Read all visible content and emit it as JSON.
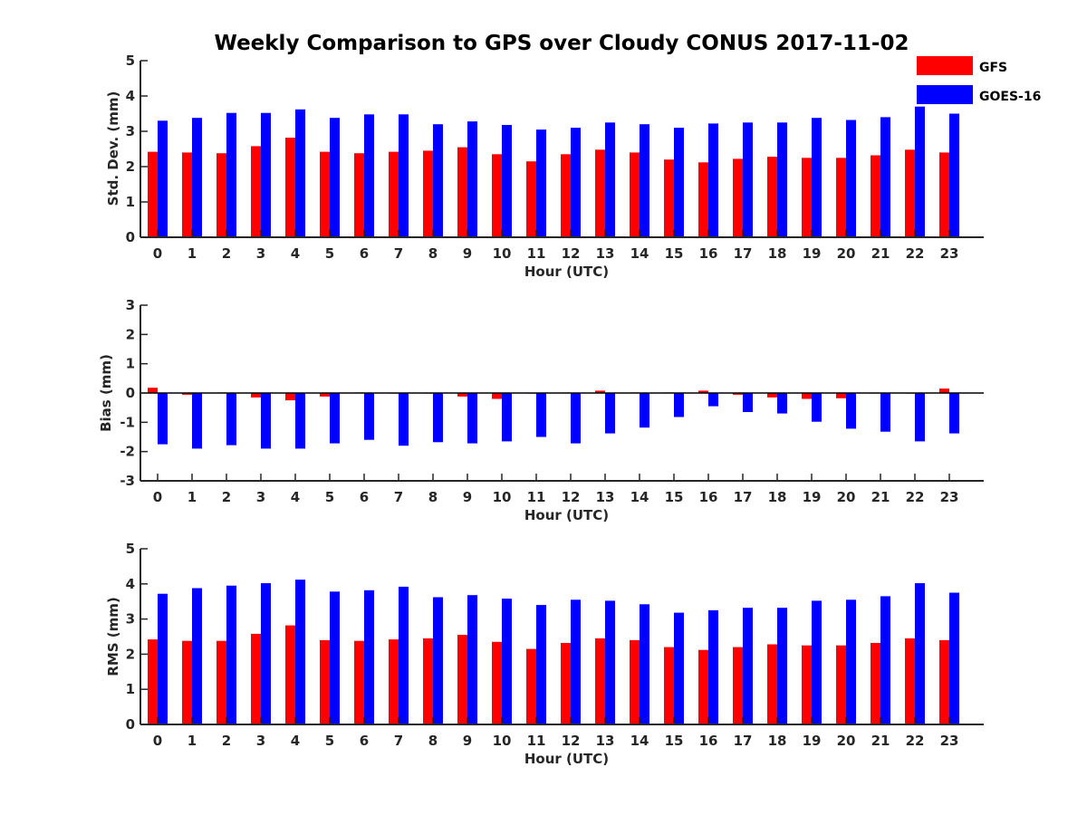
{
  "figure": {
    "title": "Weekly Comparison to GPS over Cloudy CONUS 2017-11-02"
  },
  "legend": {
    "placement": "top-right",
    "items": [
      {
        "name": "GFS",
        "color": "#ff0000"
      },
      {
        "name": "GOES-16",
        "color": "#0000ff"
      }
    ]
  },
  "chart_data": [
    {
      "type": "bar",
      "title": "Weekly Comparison to GPS over Cloudy CONUS 2017-11-02",
      "xlabel": "Hour (UTC)",
      "ylabel": "Std. Dev. (mm)",
      "ylim": [
        0,
        5
      ],
      "yticks": [
        "0",
        "1",
        "2",
        "3",
        "4",
        "5"
      ],
      "grid": false,
      "categories": [
        "0",
        "1",
        "2",
        "3",
        "4",
        "5",
        "6",
        "7",
        "8",
        "9",
        "10",
        "11",
        "12",
        "13",
        "14",
        "15",
        "16",
        "17",
        "18",
        "19",
        "20",
        "21",
        "22",
        "23"
      ],
      "series": [
        {
          "name": "GFS",
          "color": "#ff0000",
          "values": [
            2.42,
            2.4,
            2.38,
            2.58,
            2.82,
            2.42,
            2.38,
            2.42,
            2.45,
            2.55,
            2.35,
            2.15,
            2.35,
            2.48,
            2.4,
            2.2,
            2.12,
            2.22,
            2.28,
            2.25,
            2.25,
            2.32,
            2.48,
            2.4
          ]
        },
        {
          "name": "GOES-16",
          "color": "#0000ff",
          "values": [
            3.3,
            3.38,
            3.52,
            3.52,
            3.62,
            3.38,
            3.48,
            3.48,
            3.2,
            3.28,
            3.18,
            3.05,
            3.1,
            3.25,
            3.2,
            3.1,
            3.22,
            3.25,
            3.25,
            3.38,
            3.32,
            3.4,
            3.7,
            3.5
          ]
        }
      ]
    },
    {
      "type": "bar",
      "xlabel": "Hour (UTC)",
      "ylabel": "Bias (mm)",
      "ylim": [
        -3,
        3
      ],
      "yticks": [
        "-3",
        "-2",
        "-1",
        "0",
        "1",
        "2",
        "3"
      ],
      "grid": false,
      "zero_line": true,
      "categories": [
        "0",
        "1",
        "2",
        "3",
        "4",
        "5",
        "6",
        "7",
        "8",
        "9",
        "10",
        "11",
        "12",
        "13",
        "14",
        "15",
        "16",
        "17",
        "18",
        "19",
        "20",
        "21",
        "22",
        "23"
      ],
      "series": [
        {
          "name": "GFS",
          "color": "#ff0000",
          "values": [
            0.18,
            -0.06,
            0.02,
            -0.15,
            -0.25,
            -0.12,
            0.02,
            -0.02,
            -0.02,
            -0.12,
            -0.2,
            -0.02,
            0.02,
            0.08,
            0.02,
            0.02,
            0.08,
            -0.06,
            -0.15,
            -0.2,
            -0.18,
            -0.02,
            -0.02,
            0.15
          ]
        },
        {
          "name": "GOES-16",
          "color": "#0000ff",
          "values": [
            -1.75,
            -1.9,
            -1.78,
            -1.9,
            -1.9,
            -1.72,
            -1.6,
            -1.8,
            -1.68,
            -1.72,
            -1.65,
            -1.5,
            -1.72,
            -1.38,
            -1.18,
            -0.82,
            -0.45,
            -0.65,
            -0.7,
            -0.98,
            -1.22,
            -1.32,
            -1.65,
            -1.38
          ]
        }
      ]
    },
    {
      "type": "bar",
      "xlabel": "Hour (UTC)",
      "ylabel": "RMS (mm)",
      "ylim": [
        0,
        5
      ],
      "yticks": [
        "0",
        "1",
        "2",
        "3",
        "4",
        "5"
      ],
      "grid": false,
      "categories": [
        "0",
        "1",
        "2",
        "3",
        "4",
        "5",
        "6",
        "7",
        "8",
        "9",
        "10",
        "11",
        "12",
        "13",
        "14",
        "15",
        "16",
        "17",
        "18",
        "19",
        "20",
        "21",
        "22",
        "23"
      ],
      "series": [
        {
          "name": "GFS",
          "color": "#ff0000",
          "values": [
            2.42,
            2.38,
            2.38,
            2.58,
            2.82,
            2.4,
            2.38,
            2.42,
            2.45,
            2.55,
            2.35,
            2.15,
            2.32,
            2.45,
            2.4,
            2.2,
            2.12,
            2.2,
            2.28,
            2.25,
            2.25,
            2.32,
            2.45,
            2.4
          ]
        },
        {
          "name": "GOES-16",
          "color": "#0000ff",
          "values": [
            3.72,
            3.88,
            3.95,
            4.02,
            4.12,
            3.78,
            3.82,
            3.92,
            3.62,
            3.68,
            3.58,
            3.4,
            3.55,
            3.52,
            3.42,
            3.18,
            3.25,
            3.32,
            3.32,
            3.52,
            3.55,
            3.65,
            4.02,
            3.75
          ]
        }
      ]
    }
  ]
}
